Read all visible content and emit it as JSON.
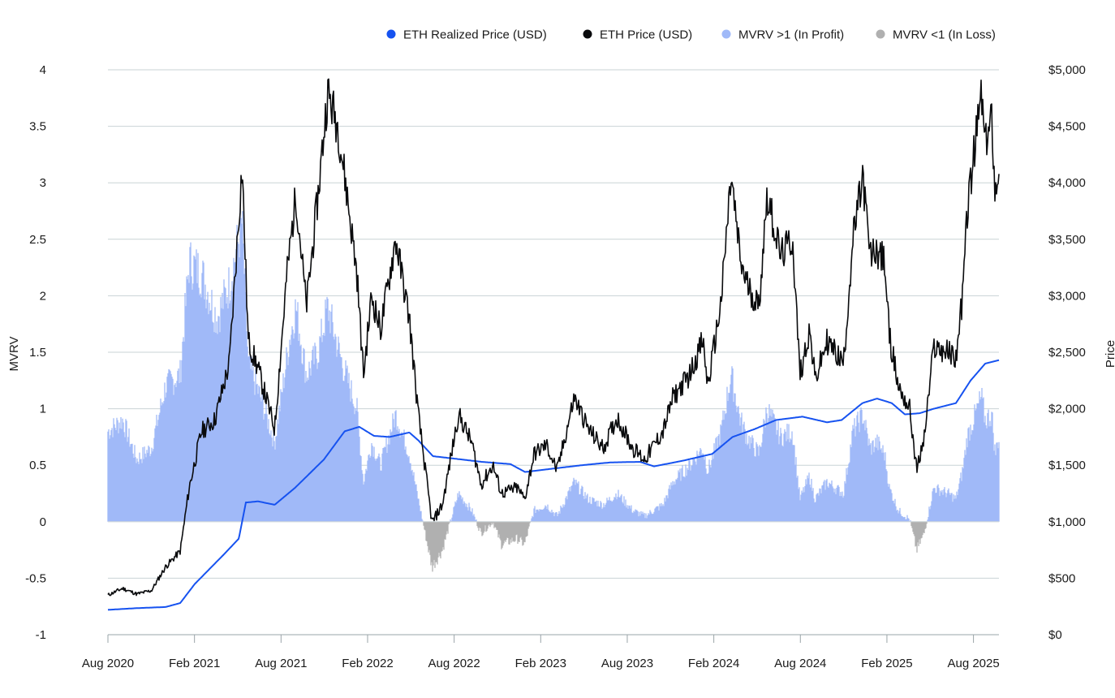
{
  "chart_data": {
    "type": "line",
    "ylabel_left": "MVRV",
    "ylabel_right": "Price",
    "ylim_left": [
      -1,
      4
    ],
    "ylim_right": [
      0,
      5000
    ],
    "left_ticks": [
      "4",
      "3.5",
      "3",
      "2.5",
      "2",
      "1.5",
      "1",
      "0.5",
      "0",
      "-0.5",
      "-1"
    ],
    "right_ticks": [
      "$5,000",
      "$4,500",
      "$4,000",
      "$3,500",
      "$3,000",
      "$2,500",
      "$2,000",
      "$1,500",
      "$1,000",
      "$500",
      "$0"
    ],
    "x_ticks": [
      "Aug 2020",
      "Feb 2021",
      "Aug 2021",
      "Feb 2022",
      "Aug 2022",
      "Feb 2023",
      "Aug 2023",
      "Feb 2024",
      "Aug 2024",
      "Feb 2025",
      "Aug 2025"
    ],
    "x_range": [
      "2020-08-01",
      "2025-09-30"
    ],
    "grid": true,
    "legend_position": "top-right",
    "legend": [
      {
        "label": "ETH Realized Price (USD)",
        "color": "#1652f0"
      },
      {
        "label": "ETH Price (USD)",
        "color": "#0a0b0d"
      },
      {
        "label": "MVRV >1 (In Profit)",
        "color": "#a0b9f8"
      },
      {
        "label": "MVRV <1 (In Loss)",
        "color": "#b0b0b0"
      }
    ],
    "series": [
      {
        "name": "ETH Price (USD)",
        "axis": "right",
        "color": "#0a0b0d",
        "points": [
          [
            "2020-08-01",
            350
          ],
          [
            "2020-09-01",
            410
          ],
          [
            "2020-10-01",
            360
          ],
          [
            "2020-11-01",
            390
          ],
          [
            "2020-12-01",
            600
          ],
          [
            "2021-01-01",
            740
          ],
          [
            "2021-01-20",
            1300
          ],
          [
            "2021-02-15",
            1800
          ],
          [
            "2021-03-15",
            1900
          ],
          [
            "2021-04-15",
            2400
          ],
          [
            "2021-05-12",
            4150
          ],
          [
            "2021-05-25",
            2600
          ],
          [
            "2021-06-15",
            2350
          ],
          [
            "2021-07-20",
            1820
          ],
          [
            "2021-08-15",
            3200
          ],
          [
            "2021-09-03",
            3900
          ],
          [
            "2021-09-25",
            2900
          ],
          [
            "2021-10-20",
            3900
          ],
          [
            "2021-11-09",
            4800
          ],
          [
            "2021-12-01",
            4500
          ],
          [
            "2021-12-20",
            3900
          ],
          [
            "2022-01-10",
            3200
          ],
          [
            "2022-01-24",
            2300
          ],
          [
            "2022-02-10",
            3000
          ],
          [
            "2022-03-01",
            2700
          ],
          [
            "2022-04-02",
            3500
          ],
          [
            "2022-05-01",
            2800
          ],
          [
            "2022-05-20",
            1950
          ],
          [
            "2022-06-18",
            990
          ],
          [
            "2022-07-10",
            1150
          ],
          [
            "2022-08-13",
            1950
          ],
          [
            "2022-09-10",
            1700
          ],
          [
            "2022-09-30",
            1330
          ],
          [
            "2022-10-25",
            1500
          ],
          [
            "2022-11-12",
            1250
          ],
          [
            "2022-12-15",
            1300
          ],
          [
            "2022-12-31",
            1200
          ],
          [
            "2023-01-20",
            1600
          ],
          [
            "2023-02-15",
            1680
          ],
          [
            "2023-03-10",
            1450
          ],
          [
            "2023-04-15",
            2100
          ],
          [
            "2023-05-15",
            1820
          ],
          [
            "2023-06-15",
            1650
          ],
          [
            "2023-07-15",
            1920
          ],
          [
            "2023-08-17",
            1650
          ],
          [
            "2023-09-11",
            1550
          ],
          [
            "2023-10-20",
            1800
          ],
          [
            "2023-11-10",
            2100
          ],
          [
            "2023-12-15",
            2300
          ],
          [
            "2024-01-12",
            2600
          ],
          [
            "2024-01-23",
            2200
          ],
          [
            "2024-02-20",
            2950
          ],
          [
            "2024-03-12",
            4050
          ],
          [
            "2024-04-01",
            3300
          ],
          [
            "2024-04-15",
            3100
          ],
          [
            "2024-05-10",
            2900
          ],
          [
            "2024-05-27",
            3900
          ],
          [
            "2024-06-25",
            3350
          ],
          [
            "2024-07-20",
            3500
          ],
          [
            "2024-08-05",
            2300
          ],
          [
            "2024-08-25",
            2700
          ],
          [
            "2024-09-06",
            2250
          ],
          [
            "2024-10-01",
            2600
          ],
          [
            "2024-11-05",
            2400
          ],
          [
            "2024-11-25",
            3500
          ],
          [
            "2024-12-16",
            4050
          ],
          [
            "2024-12-31",
            3350
          ],
          [
            "2025-01-15",
            3400
          ],
          [
            "2025-01-31",
            3300
          ],
          [
            "2025-02-10",
            2650
          ],
          [
            "2025-03-01",
            2200
          ],
          [
            "2025-03-25",
            2000
          ],
          [
            "2025-04-09",
            1450
          ],
          [
            "2025-04-25",
            1750
          ],
          [
            "2025-05-15",
            2550
          ],
          [
            "2025-06-15",
            2500
          ],
          [
            "2025-07-01",
            2450
          ],
          [
            "2025-07-15",
            3000
          ],
          [
            "2025-07-25",
            3750
          ],
          [
            "2025-08-24",
            4800
          ],
          [
            "2025-09-01",
            4300
          ],
          [
            "2025-09-15",
            4600
          ],
          [
            "2025-09-22",
            3900
          ],
          [
            "2025-09-30",
            4200
          ]
        ]
      },
      {
        "name": "ETH Realized Price (USD)",
        "axis": "right",
        "color": "#1652f0",
        "points": [
          [
            "2020-08-01",
            220
          ],
          [
            "2020-10-01",
            235
          ],
          [
            "2020-12-01",
            245
          ],
          [
            "2021-01-01",
            280
          ],
          [
            "2021-02-01",
            450
          ],
          [
            "2021-04-01",
            700
          ],
          [
            "2021-05-05",
            850
          ],
          [
            "2021-05-20",
            1170
          ],
          [
            "2021-06-15",
            1180
          ],
          [
            "2021-07-20",
            1150
          ],
          [
            "2021-09-01",
            1300
          ],
          [
            "2021-11-01",
            1550
          ],
          [
            "2021-12-15",
            1800
          ],
          [
            "2022-01-15",
            1840
          ],
          [
            "2022-02-15",
            1760
          ],
          [
            "2022-03-20",
            1750
          ],
          [
            "2022-05-01",
            1790
          ],
          [
            "2022-05-20",
            1720
          ],
          [
            "2022-06-20",
            1580
          ],
          [
            "2022-08-01",
            1560
          ],
          [
            "2022-10-01",
            1530
          ],
          [
            "2022-12-01",
            1510
          ],
          [
            "2023-01-01",
            1440
          ],
          [
            "2023-03-01",
            1470
          ],
          [
            "2023-05-01",
            1500
          ],
          [
            "2023-07-01",
            1525
          ],
          [
            "2023-09-01",
            1530
          ],
          [
            "2023-10-01",
            1490
          ],
          [
            "2023-12-01",
            1540
          ],
          [
            "2024-02-01",
            1600
          ],
          [
            "2024-03-15",
            1750
          ],
          [
            "2024-05-01",
            1820
          ],
          [
            "2024-06-15",
            1900
          ],
          [
            "2024-08-10",
            1930
          ],
          [
            "2024-10-01",
            1880
          ],
          [
            "2024-11-01",
            1900
          ],
          [
            "2024-12-15",
            2050
          ],
          [
            "2025-01-15",
            2090
          ],
          [
            "2025-02-15",
            2050
          ],
          [
            "2025-03-15",
            1950
          ],
          [
            "2025-04-15",
            1960
          ],
          [
            "2025-05-15",
            2000
          ],
          [
            "2025-07-01",
            2050
          ],
          [
            "2025-08-01",
            2250
          ],
          [
            "2025-09-01",
            2400
          ],
          [
            "2025-09-30",
            2430
          ]
        ]
      },
      {
        "name": "MVRV",
        "axis": "left",
        "positive_color": "#a0b9f8",
        "negative_color": "#b0b0b0",
        "points": [
          [
            "2020-08-01",
            0.8
          ],
          [
            "2020-09-01",
            0.9
          ],
          [
            "2020-10-01",
            0.55
          ],
          [
            "2020-11-01",
            0.65
          ],
          [
            "2020-12-01",
            1.2
          ],
          [
            "2021-01-01",
            1.3
          ],
          [
            "2021-01-20",
            2.3
          ],
          [
            "2021-02-15",
            2.2
          ],
          [
            "2021-03-20",
            1.8
          ],
          [
            "2021-04-15",
            2.1
          ],
          [
            "2021-05-12",
            2.65
          ],
          [
            "2021-05-25",
            1.4
          ],
          [
            "2021-06-20",
            1.1
          ],
          [
            "2021-07-20",
            0.7
          ],
          [
            "2021-08-20",
            1.6
          ],
          [
            "2021-09-03",
            1.9
          ],
          [
            "2021-09-25",
            1.3
          ],
          [
            "2021-10-20",
            1.5
          ],
          [
            "2021-11-09",
            1.9
          ],
          [
            "2021-12-10",
            1.4
          ],
          [
            "2022-01-10",
            1.0
          ],
          [
            "2022-01-24",
            0.35
          ],
          [
            "2022-02-10",
            0.7
          ],
          [
            "2022-03-01",
            0.5
          ],
          [
            "2022-04-02",
            0.95
          ],
          [
            "2022-05-01",
            0.6
          ],
          [
            "2022-05-20",
            0.2
          ],
          [
            "2022-06-18",
            -0.4
          ],
          [
            "2022-07-10",
            -0.25
          ],
          [
            "2022-08-13",
            0.25
          ],
          [
            "2022-09-10",
            0.1
          ],
          [
            "2022-09-30",
            -0.1
          ],
          [
            "2022-10-25",
            0.0
          ],
          [
            "2022-11-12",
            -0.2
          ],
          [
            "2022-12-15",
            -0.15
          ],
          [
            "2022-12-31",
            -0.2
          ],
          [
            "2023-01-20",
            0.1
          ],
          [
            "2023-02-15",
            0.15
          ],
          [
            "2023-03-10",
            0.05
          ],
          [
            "2023-04-15",
            0.35
          ],
          [
            "2023-05-15",
            0.2
          ],
          [
            "2023-06-15",
            0.15
          ],
          [
            "2023-07-15",
            0.25
          ],
          [
            "2023-08-17",
            0.1
          ],
          [
            "2023-09-11",
            0.05
          ],
          [
            "2023-10-20",
            0.15
          ],
          [
            "2023-11-10",
            0.35
          ],
          [
            "2023-12-15",
            0.5
          ],
          [
            "2024-01-12",
            0.65
          ],
          [
            "2024-01-23",
            0.45
          ],
          [
            "2024-02-20",
            0.8
          ],
          [
            "2024-03-12",
            1.3
          ],
          [
            "2024-04-01",
            0.9
          ],
          [
            "2024-04-15",
            0.75
          ],
          [
            "2024-05-10",
            0.6
          ],
          [
            "2024-05-27",
            1.0
          ],
          [
            "2024-06-25",
            0.75
          ],
          [
            "2024-07-20",
            0.8
          ],
          [
            "2024-08-05",
            0.2
          ],
          [
            "2024-08-25",
            0.4
          ],
          [
            "2024-09-06",
            0.2
          ],
          [
            "2024-10-01",
            0.35
          ],
          [
            "2024-11-05",
            0.25
          ],
          [
            "2024-11-25",
            0.8
          ],
          [
            "2024-12-16",
            0.95
          ],
          [
            "2024-12-31",
            0.65
          ],
          [
            "2025-01-15",
            0.7
          ],
          [
            "2025-01-31",
            0.6
          ],
          [
            "2025-02-10",
            0.3
          ],
          [
            "2025-03-01",
            0.1
          ],
          [
            "2025-03-25",
            0.02
          ],
          [
            "2025-04-09",
            -0.25
          ],
          [
            "2025-04-25",
            -0.1
          ],
          [
            "2025-05-15",
            0.3
          ],
          [
            "2025-06-15",
            0.25
          ],
          [
            "2025-07-01",
            0.2
          ],
          [
            "2025-07-15",
            0.45
          ],
          [
            "2025-07-25",
            0.75
          ],
          [
            "2025-08-24",
            1.1
          ],
          [
            "2025-09-01",
            0.9
          ],
          [
            "2025-09-15",
            0.95
          ],
          [
            "2025-09-22",
            0.6
          ],
          [
            "2025-09-30",
            0.75
          ]
        ]
      }
    ]
  }
}
